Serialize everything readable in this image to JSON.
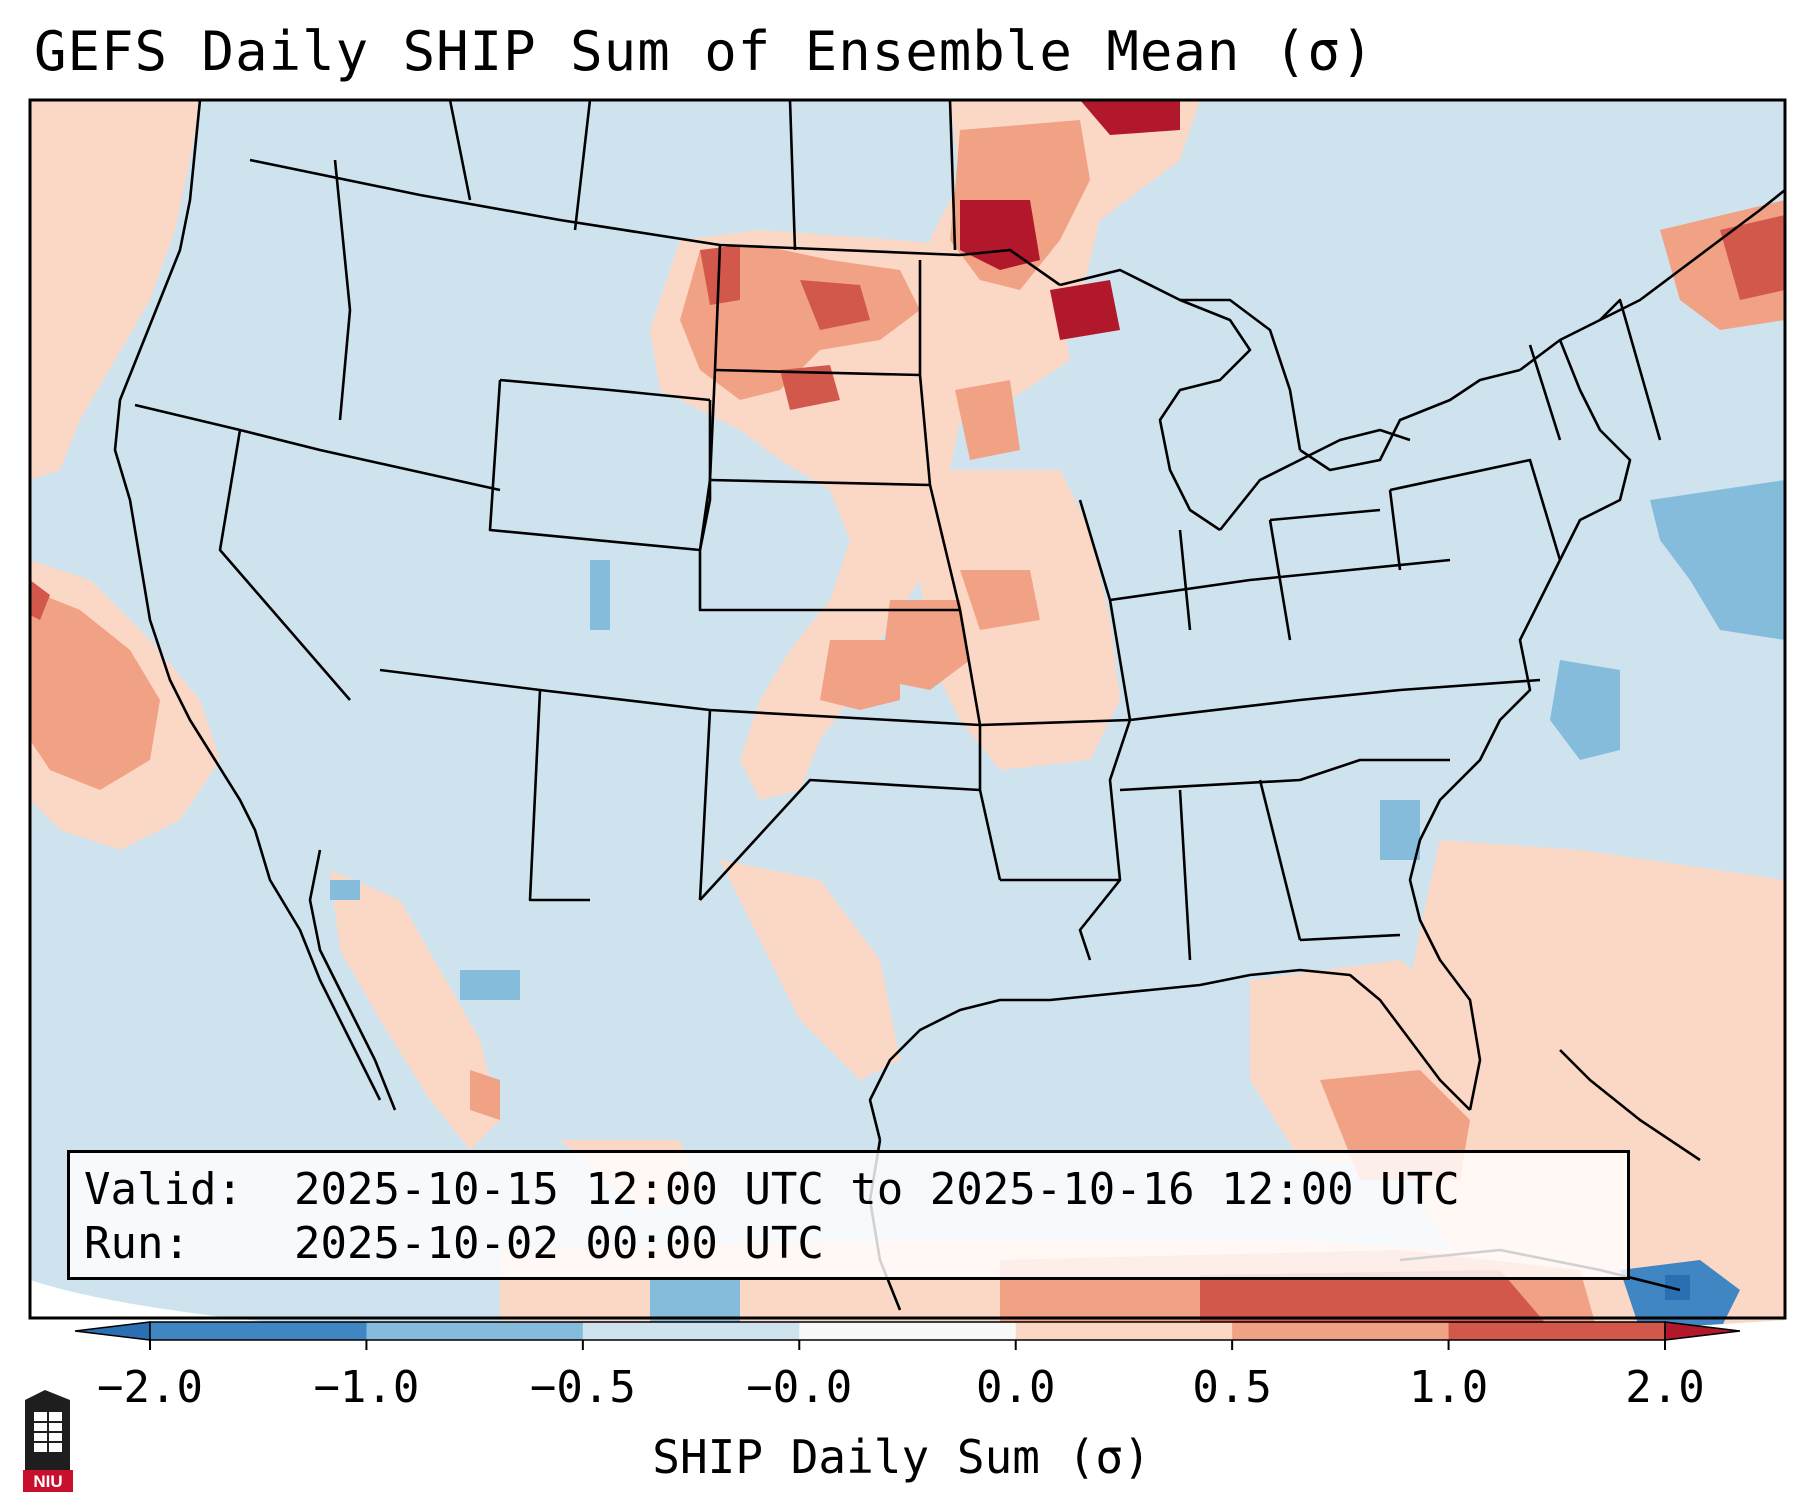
{
  "title": "GEFS Daily SHIP Sum of Ensemble Mean (σ)",
  "info": {
    "valid_label": "Valid:",
    "valid_value": "2025-10-15 12:00 UTC to 2025-10-16 12:00 UTC",
    "run_label": "Run:",
    "run_value": "2025-10-02 00:00 UTC"
  },
  "colorbar": {
    "label": "SHIP Daily Sum (σ)",
    "ticks": [
      "−2.0",
      "−1.0",
      "−0.5",
      "−0.0",
      "0.0",
      "0.5",
      "1.0",
      "2.0"
    ],
    "colors": [
      "#3f86c2",
      "#85bcdc",
      "#cfe3ef",
      "#f8f8f8",
      "#fbd8c5",
      "#f1a184",
      "#d2584b"
    ],
    "extend_low_color": "#2b6fb3",
    "extend_high_color": "#b2182b"
  },
  "logo": {
    "icon": "niu-logo-icon",
    "text": "NIU"
  }
}
